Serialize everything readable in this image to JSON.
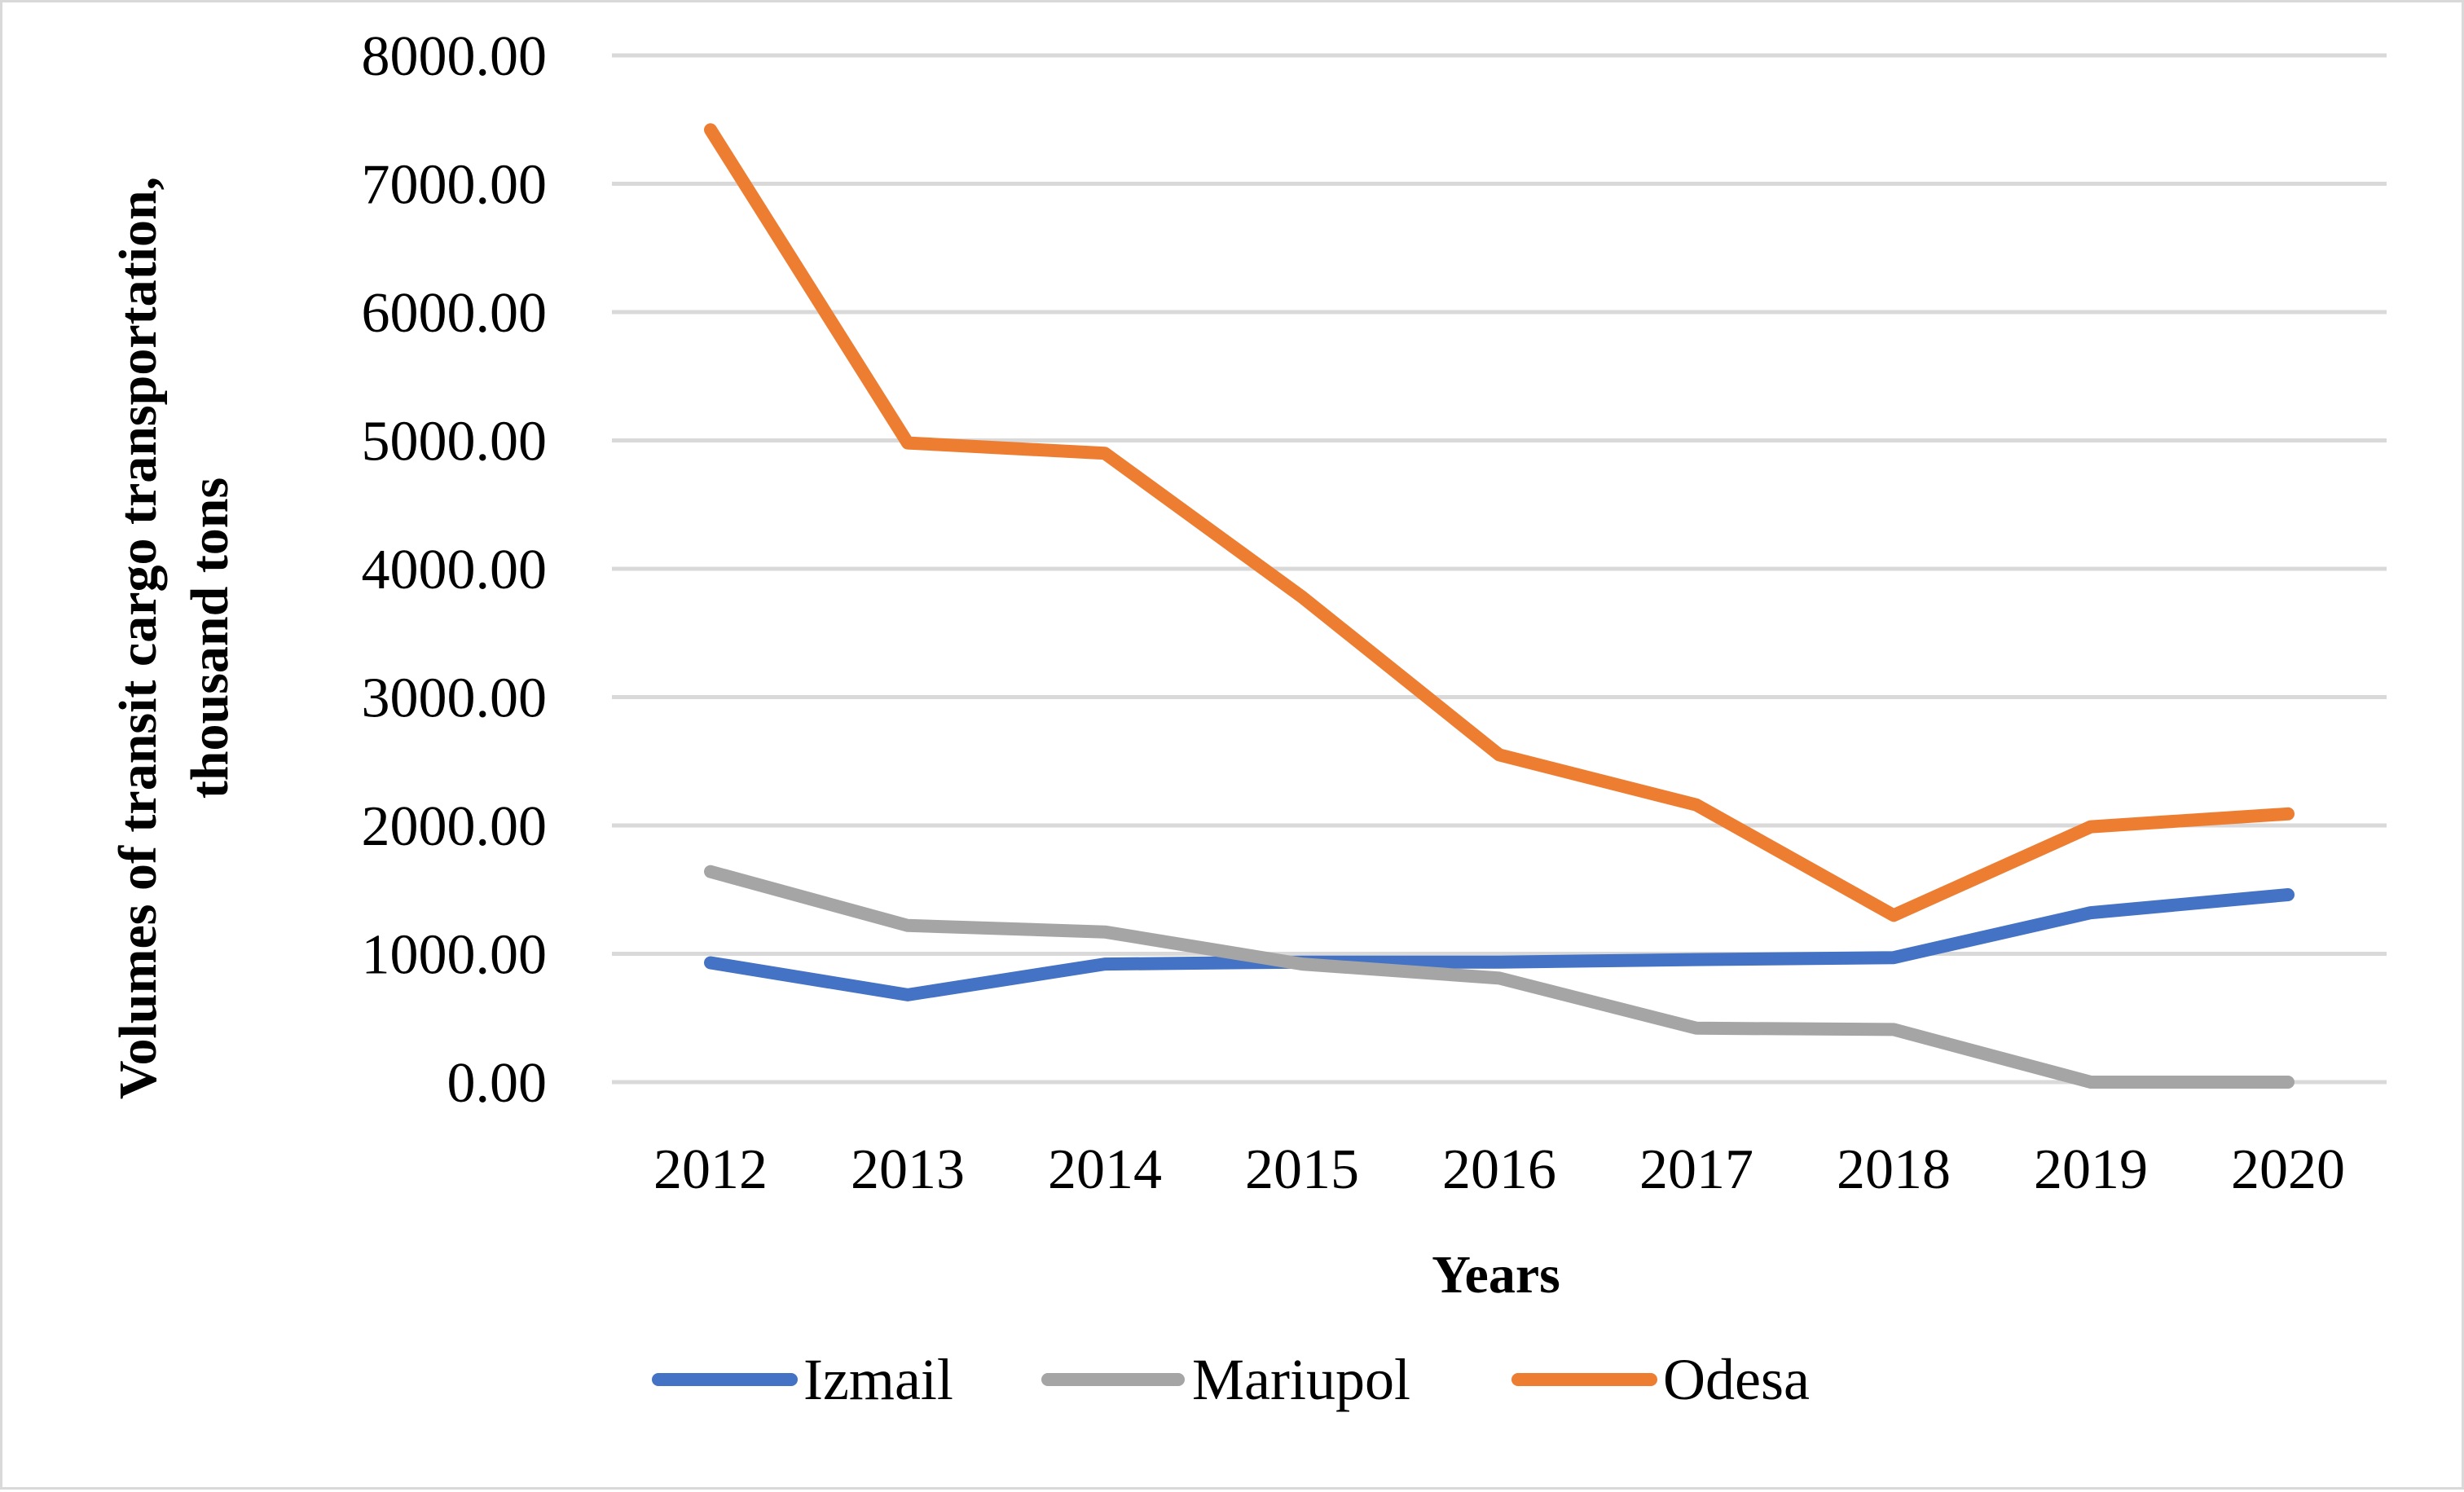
{
  "chart_data": {
    "type": "line",
    "title": "",
    "xlabel": "Years",
    "ylabel_lines": [
      "Volumes of transit cargo transportation,",
      "thousand tons"
    ],
    "categories": [
      "2012",
      "2013",
      "2014",
      "2015",
      "2016",
      "2017",
      "2018",
      "2019",
      "2020"
    ],
    "ylim": [
      0,
      8000
    ],
    "yticks": [
      0,
      1000,
      2000,
      3000,
      4000,
      5000,
      6000,
      7000,
      8000
    ],
    "ytick_labels": [
      "0.00",
      "1000.00",
      "2000.00",
      "3000.00",
      "4000.00",
      "5000.00",
      "6000.00",
      "7000.00",
      "8000.00"
    ],
    "grid": true,
    "legend_position": "bottom",
    "series": [
      {
        "name": "Izmail",
        "color": "#4472c4",
        "values": [
          930,
          680,
          920,
          935,
          935,
          955,
          970,
          1320,
          1460
        ]
      },
      {
        "name": "Mariupol",
        "color": "#a5a5a5",
        "values": [
          1640,
          1220,
          1170,
          920,
          810,
          420,
          410,
          0,
          0
        ]
      },
      {
        "name": "Odesa",
        "color": "#ed7d31",
        "values": [
          7420,
          4980,
          4900,
          3780,
          2550,
          2160,
          1300,
          1990,
          2090
        ]
      }
    ]
  }
}
